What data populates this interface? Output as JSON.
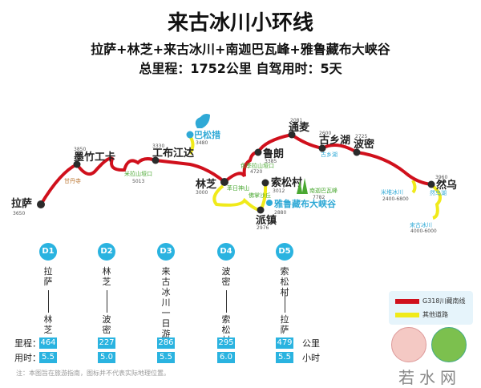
{
  "title": "来古冰川小环线",
  "subtitle": "拉萨+林芝+来古冰川+南迦巴瓦峰+雅鲁藏布大峡谷",
  "summary": "总里程：1752公里  自驾用时：5天",
  "colors": {
    "g318": "#d0101c",
    "other": "#f0ea1a",
    "accent": "#2ab3e0"
  },
  "map": {
    "cities": [
      {
        "name": "拉萨",
        "elev": "3650"
      },
      {
        "name": "墨竹工卡",
        "elev": "3850"
      },
      {
        "name": "工布江达",
        "elev": "3330"
      },
      {
        "name": "林芝",
        "elev": "3000"
      },
      {
        "name": "鲁朗",
        "elev": "3385"
      },
      {
        "name": "通麦",
        "elev": "2081"
      },
      {
        "name": "古乡湖",
        "elev": "2600"
      },
      {
        "name": "波密",
        "elev": "2725"
      },
      {
        "name": "然乌",
        "elev": "3960"
      },
      {
        "name": "索松村",
        "elev": "3012"
      },
      {
        "name": "派镇",
        "elev": "2976"
      }
    ],
    "sights": {
      "gandan": "甘丹寺",
      "mila": "米拉山垭口",
      "mila_elev": "5013",
      "basongcuo": "巴松措",
      "basongcuo_elev": "3480",
      "sejila": "色季拉山垭口",
      "sejila_elev": "4720",
      "benri": "苯日神山",
      "fozhang": "佛掌沙丘",
      "nanjiabawa": "南迦巴瓦峰",
      "nanjiabawa_elev": "7782",
      "canyon": "雅鲁藏布大峡谷",
      "canyon_elev": "2880",
      "guxianghu": "古乡湖",
      "midui": "米堆冰川",
      "midui_elev": "2400-6800",
      "ranwuhu": "然乌湖",
      "laigu": "来古冰川",
      "laigu_elev": "4000-6000"
    }
  },
  "days": [
    {
      "badge": "D1",
      "route": "拉萨——林芝",
      "from": "拉萨",
      "to": "林芝",
      "km": "464",
      "hours": "5.5"
    },
    {
      "badge": "D2",
      "route": "林芝——波密",
      "from": "林芝",
      "to": "波密",
      "km": "227",
      "hours": "5.0"
    },
    {
      "badge": "D3",
      "route": "来古冰川一日游",
      "from": "来古冰川一日游",
      "to": "",
      "km": "286",
      "hours": "5.5"
    },
    {
      "badge": "D4",
      "route": "波密——索松村",
      "from": "波密",
      "to": "索松村",
      "km": "295",
      "hours": "6.0"
    },
    {
      "badge": "D5",
      "route": "索松村——拉萨",
      "from": "索松村",
      "to": "拉萨",
      "km": "479",
      "hours": "5.5"
    }
  ],
  "stats_labels": {
    "km": "里程：",
    "hours": "用时：",
    "km_unit": "公里",
    "hours_unit": "小时"
  },
  "legend": {
    "g318": "G318川藏南线",
    "other": "其他道路"
  },
  "note": "注：本图旨在旅游指南，图标并不代表实际地理位置。",
  "logo": "若水网"
}
